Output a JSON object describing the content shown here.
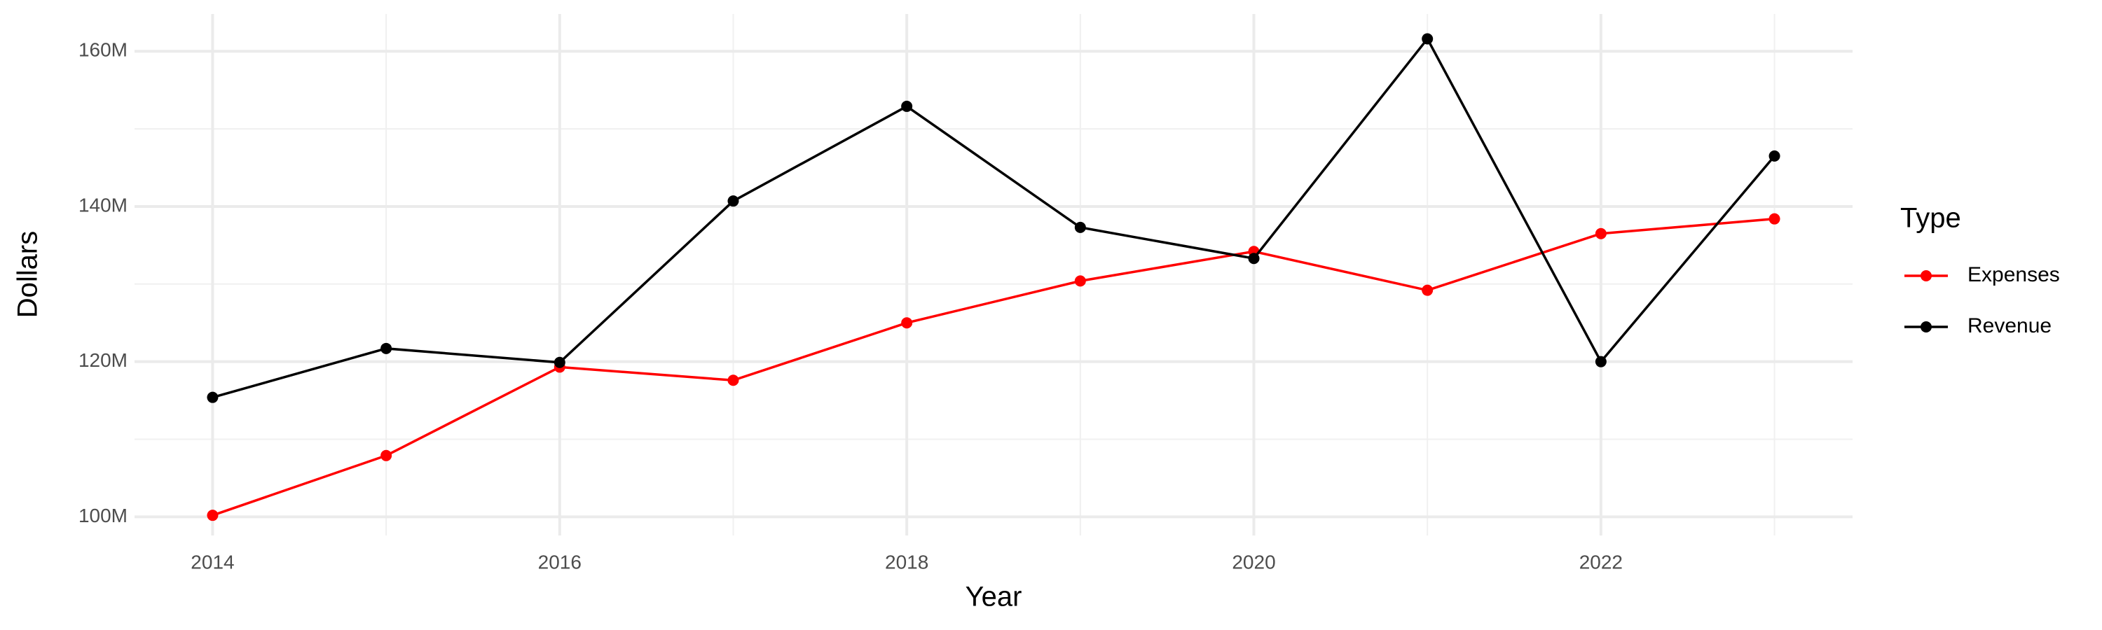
{
  "chart_data": {
    "type": "line",
    "x_label": "Year",
    "y_label": "Dollars",
    "legend_title": "Type",
    "legend_position": "right",
    "x": [
      2014,
      2015,
      2016,
      2017,
      2018,
      2019,
      2020,
      2021,
      2022,
      2023
    ],
    "series": [
      {
        "name": "Expenses",
        "color": "#ff0000",
        "values": [
          100200000,
          107900000,
          119300000,
          117600000,
          125000000,
          130400000,
          134200000,
          129200000,
          136500000,
          138400000
        ]
      },
      {
        "name": "Revenue",
        "color": "#000000",
        "values": [
          115400000,
          121700000,
          119900000,
          140700000,
          152900000,
          137300000,
          133300000,
          161600000,
          120000000,
          146500000
        ]
      }
    ],
    "xlim": [
      2013.55,
      2023.45
    ],
    "xticks": [
      2014,
      2016,
      2018,
      2020,
      2022
    ],
    "xminor": [
      2015,
      2017,
      2019,
      2021,
      2023
    ],
    "ylim": [
      97600000,
      164800000
    ],
    "yticks": [
      {
        "value": 100000000,
        "label": "100M"
      },
      {
        "value": 120000000,
        "label": "120M"
      },
      {
        "value": 140000000,
        "label": "140M"
      },
      {
        "value": 160000000,
        "label": "160M"
      }
    ],
    "yminor": [
      110000000,
      130000000,
      150000000
    ],
    "grid": true
  }
}
